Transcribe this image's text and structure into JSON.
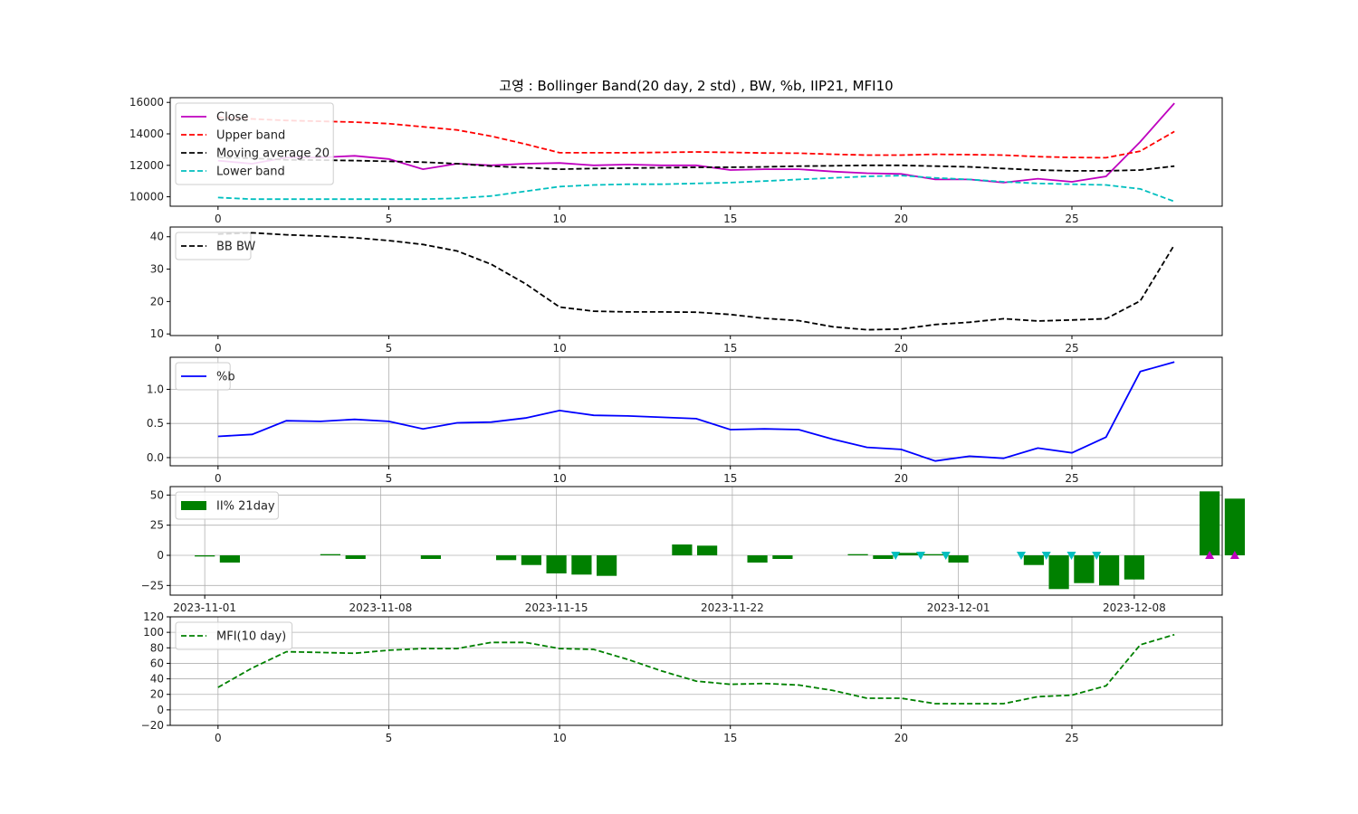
{
  "chart_data": [
    {
      "type": "line",
      "title": "고영 : Bollinger Band(20 day, 2 std) , BW, %b, IIP21, MFI10",
      "x": [
        0,
        1,
        2,
        3,
        4,
        5,
        6,
        7,
        8,
        9,
        10,
        11,
        12,
        13,
        14,
        15,
        16,
        17,
        18,
        19,
        20,
        21,
        22,
        23,
        24,
        25,
        26,
        27,
        28
      ],
      "xlim": [
        -1.4,
        29.4
      ],
      "ylim": [
        9400,
        16300
      ],
      "xticks": [
        0,
        5,
        10,
        15,
        20,
        25
      ],
      "yticks": [
        10000,
        12000,
        14000,
        16000
      ],
      "grid": false,
      "legend_position": "upper-left",
      "series": [
        {
          "name": "Close",
          "color": "#bf00bf",
          "style": "solid",
          "values": [
            12300,
            12100,
            12500,
            12500,
            12600,
            12400,
            11750,
            12100,
            12000,
            12100,
            12150,
            12000,
            12050,
            12000,
            12000,
            11700,
            11750,
            11750,
            11600,
            11500,
            11450,
            11100,
            11100,
            10900,
            11150,
            10950,
            11300,
            13500,
            15950
          ]
        },
        {
          "name": "Upper band",
          "color": "#ff0000",
          "style": "dashed",
          "values": [
            15050,
            14950,
            14850,
            14800,
            14750,
            14650,
            14450,
            14250,
            13850,
            13350,
            12800,
            12800,
            12800,
            12820,
            12850,
            12820,
            12780,
            12770,
            12700,
            12650,
            12650,
            12700,
            12680,
            12650,
            12550,
            12500,
            12480,
            12900,
            14150
          ]
        },
        {
          "name": "Moving average 20",
          "color": "#000000",
          "style": "dashed",
          "values": [
            12500,
            12450,
            12350,
            12330,
            12300,
            12250,
            12200,
            12100,
            11950,
            11850,
            11750,
            11800,
            11820,
            11850,
            11870,
            11880,
            11900,
            11950,
            11970,
            12000,
            12000,
            11950,
            11900,
            11800,
            11700,
            11650,
            11650,
            11700,
            11950
          ]
        },
        {
          "name": "Lower band",
          "color": "#00bfbf",
          "style": "dashed",
          "values": [
            9950,
            9850,
            9850,
            9850,
            9850,
            9850,
            9850,
            9900,
            10050,
            10350,
            10650,
            10750,
            10800,
            10800,
            10850,
            10900,
            11000,
            11100,
            11200,
            11300,
            11350,
            11200,
            11100,
            10950,
            10850,
            10800,
            10750,
            10500,
            9700
          ]
        }
      ]
    },
    {
      "type": "line",
      "xlim": [
        -1.4,
        29.4
      ],
      "ylim": [
        9.5,
        43
      ],
      "xticks": [
        0,
        5,
        10,
        15,
        20,
        25
      ],
      "yticks": [
        10,
        20,
        30,
        40
      ],
      "grid": false,
      "legend_position": "upper-left",
      "series": [
        {
          "name": "BB BW",
          "color": "#000000",
          "style": "dashed",
          "values": [
            40.8,
            41.2,
            40.6,
            40.2,
            39.7,
            38.8,
            37.6,
            35.6,
            31.5,
            25.5,
            18.3,
            17.0,
            16.8,
            16.8,
            16.7,
            16.0,
            14.8,
            14.1,
            12.2,
            11.3,
            11.5,
            12.9,
            13.6,
            14.7,
            14.0,
            14.3,
            14.7,
            20.2,
            37.5
          ]
        }
      ]
    },
    {
      "type": "line",
      "xlim": [
        -1.4,
        29.4
      ],
      "ylim": [
        -0.12,
        1.47
      ],
      "xticks": [
        0,
        5,
        10,
        15,
        20,
        25
      ],
      "yticks": [
        0.0,
        0.5,
        1.0
      ],
      "ytick_labels": [
        "0.0",
        "0.5",
        "1.0"
      ],
      "grid": true,
      "legend_position": "upper-left",
      "series": [
        {
          "name": "%b",
          "color": "#0000ff",
          "style": "solid",
          "values": [
            0.31,
            0.34,
            0.54,
            0.53,
            0.56,
            0.53,
            0.42,
            0.51,
            0.52,
            0.58,
            0.69,
            0.62,
            0.61,
            0.59,
            0.57,
            0.41,
            0.42,
            0.41,
            0.27,
            0.15,
            0.12,
            -0.05,
            0.02,
            -0.01,
            0.14,
            0.07,
            0.3,
            1.26,
            1.4
          ]
        }
      ]
    },
    {
      "type": "bar",
      "xlim": [
        -5.5,
        162
      ],
      "ylim": [
        -33,
        57
      ],
      "xticks": [
        0,
        168,
        336,
        504,
        720,
        888
      ],
      "xticks_days": [
        0,
        7,
        14,
        21,
        30,
        37
      ],
      "xtick_labels": [
        "2023-11-01",
        "2023-11-08",
        "2023-11-15",
        "2023-11-22",
        "2023-12-01",
        "2023-12-08"
      ],
      "yticks": [
        -25,
        0,
        25,
        50
      ],
      "ytick_labels": [
        "−25",
        "0",
        "25",
        "50"
      ],
      "grid": true,
      "legend_position": "upper-left",
      "series": [
        {
          "name": "II% 21day",
          "color": "#008000",
          "dates": [
            "2023-11-01",
            "2023-11-02",
            "2023-11-06",
            "2023-11-07",
            "2023-11-10",
            "2023-11-13",
            "2023-11-14",
            "2023-11-15",
            "2023-11-16",
            "2023-11-17",
            "2023-11-20",
            "2023-11-21",
            "2023-11-23",
            "2023-11-24",
            "2023-11-27",
            "2023-11-28",
            "2023-11-29",
            "2023-11-30",
            "2023-12-01",
            "2023-12-04",
            "2023-12-05",
            "2023-12-06",
            "2023-12-07",
            "2023-12-08",
            "2023-12-11",
            "2023-12-12"
          ],
          "days": [
            0,
            1,
            5,
            6,
            9,
            12,
            13,
            14,
            15,
            16,
            19,
            20,
            22,
            23,
            26,
            27,
            28,
            29,
            30,
            33,
            34,
            35,
            36,
            37,
            40,
            41
          ],
          "values": [
            -1,
            -6,
            1,
            -3,
            -3,
            -4,
            -8,
            -15,
            -16,
            -17,
            9,
            8,
            -6,
            -3,
            1,
            -3,
            2,
            1,
            -6,
            -8,
            -28,
            -23,
            -25,
            -20,
            53,
            47
          ]
        }
      ],
      "markers": [
        {
          "symbol": "triangle-down",
          "color": "#00bfbf",
          "days": [
            27.5,
            28.5,
            29.5,
            32.5,
            33.5,
            34.5,
            35.5
          ],
          "value": 0
        },
        {
          "symbol": "triangle-up",
          "color": "#bf00bf",
          "days": [
            40,
            41
          ],
          "value": 0
        }
      ]
    },
    {
      "type": "line",
      "xlim": [
        -1.4,
        29.4
      ],
      "ylim": [
        -20,
        120
      ],
      "xticks": [
        0,
        5,
        10,
        15,
        20,
        25
      ],
      "yticks": [
        -20,
        0,
        20,
        40,
        60,
        80,
        100,
        120
      ],
      "ytick_labels": [
        "−20",
        "0",
        "20",
        "40",
        "60",
        "80",
        "100",
        "120"
      ],
      "grid": true,
      "legend_position": "upper-left",
      "series": [
        {
          "name": "MFI(10 day)",
          "color": "#008000",
          "style": "dashed",
          "values": [
            29,
            54,
            75,
            74,
            73,
            77,
            79,
            79,
            87,
            87,
            79,
            78,
            65,
            50,
            37,
            33,
            34,
            32,
            25,
            15,
            15,
            8,
            8,
            8,
            17,
            19,
            31,
            84,
            97
          ]
        }
      ]
    }
  ]
}
